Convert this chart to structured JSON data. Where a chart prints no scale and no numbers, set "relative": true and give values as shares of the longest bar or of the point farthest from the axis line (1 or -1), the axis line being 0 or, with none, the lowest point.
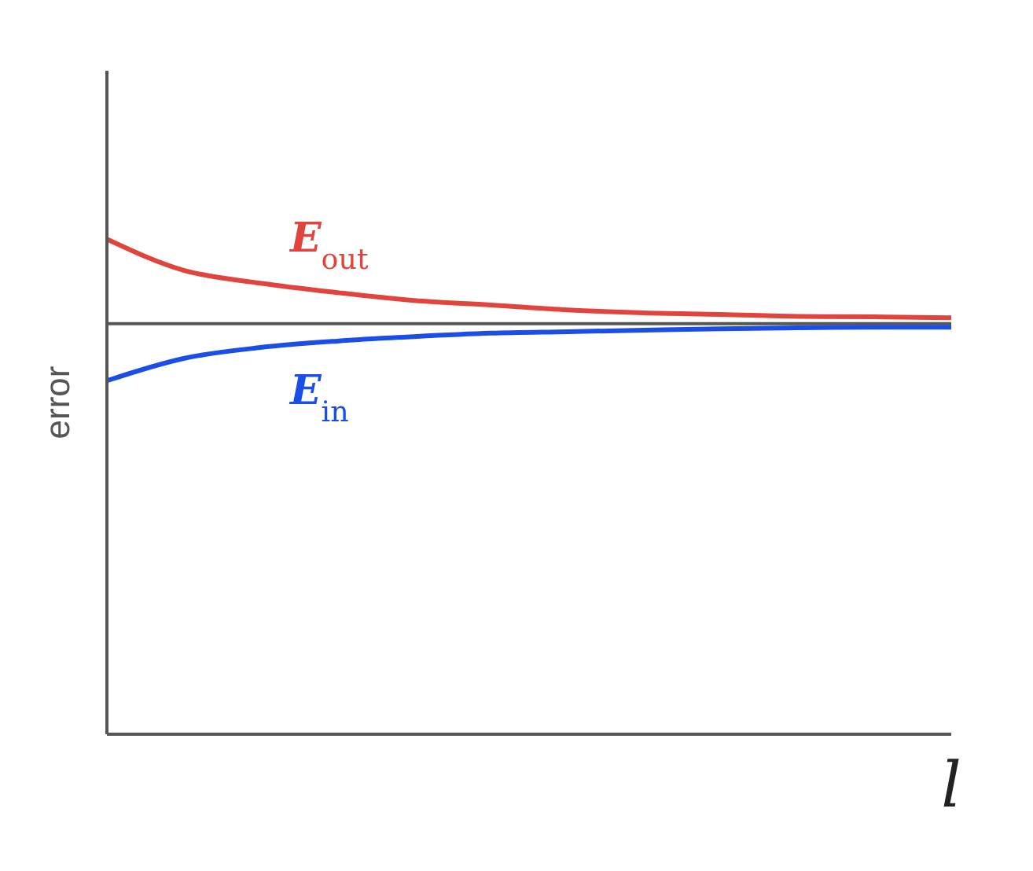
{
  "chart_data": {
    "type": "line",
    "relative": true,
    "xlabel": "l",
    "ylabel": "error",
    "categories": [
      null,
      null,
      null,
      null,
      null,
      null,
      null,
      null,
      null,
      null,
      null,
      null
    ],
    "series": [
      {
        "name": "E$_{out}$",
        "color": "#e0443c",
        "values": [
          1,
          0.937,
          0.911,
          0.892,
          0.876,
          0.867,
          0.857,
          0.851,
          0.848,
          0.844,
          0.843,
          0.841
        ]
      },
      {
        "name": "E$_{in}$",
        "color": "#1a4ee6",
        "values": [
          0.714,
          0.759,
          0.781,
          0.794,
          0.803,
          0.81,
          0.813,
          0.816,
          0.819,
          0.821,
          0.822,
          0.822
        ]
      }
    ],
    "ref_lines": [
      {
        "axis": "y",
        "value": 0.829,
        "color": "#555555"
      }
    ],
    "marker": "none",
    "line_style": "solid"
  }
}
